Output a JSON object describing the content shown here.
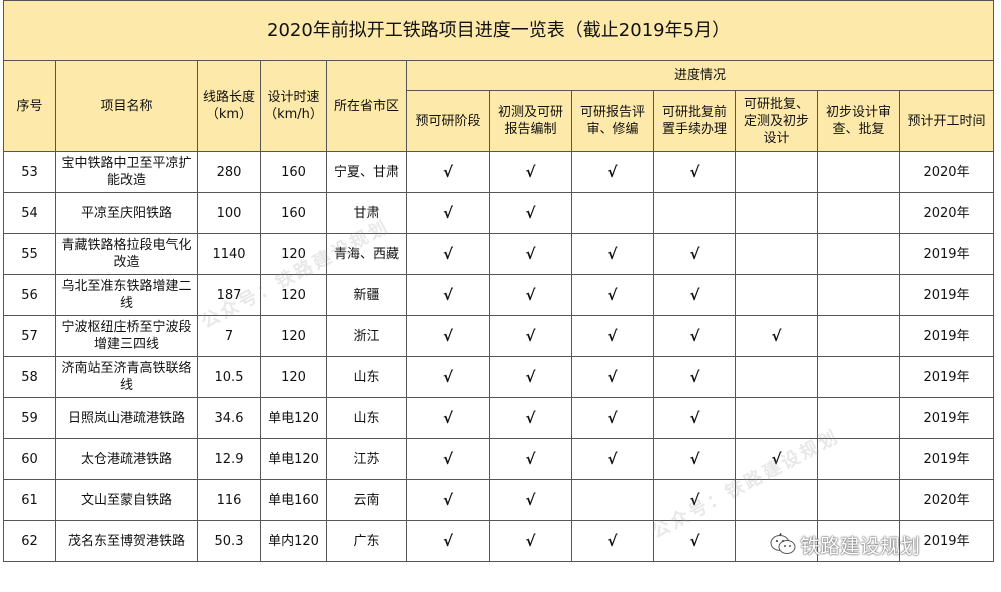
{
  "title": "2020年前拟开工铁路项目进度一览表（截止2019年5月）",
  "headers": {
    "index": "序号",
    "name": "项目名称",
    "length": "线路长度（km）",
    "speed": "设计时速（km/h）",
    "province": "所在省市区",
    "progress_group": "进度情况",
    "stages": [
      "预可研阶段",
      "初测及可研报告编制",
      "可研报告评审、修编",
      "可研批复前置手续办理",
      "可研批复、定测及初步设计",
      "初步设计审查、批复",
      "预计开工时间"
    ]
  },
  "rows": [
    {
      "no": "53",
      "name": "宝中铁路中卫至平凉扩能改造",
      "length": "280",
      "speed": "160",
      "province": "宁夏、甘肃",
      "stages": [
        "√",
        "√",
        "√",
        "√",
        "",
        ""
      ],
      "start": "2020年"
    },
    {
      "no": "54",
      "name": "平凉至庆阳铁路",
      "length": "100",
      "speed": "160",
      "province": "甘肃",
      "stages": [
        "√",
        "√",
        "",
        "",
        "",
        ""
      ],
      "start": "2020年"
    },
    {
      "no": "55",
      "name": "青藏铁路格拉段电气化改造",
      "length": "1140",
      "speed": "120",
      "province": "青海、西藏",
      "stages": [
        "√",
        "√",
        "√",
        "√",
        "",
        ""
      ],
      "start": "2019年"
    },
    {
      "no": "56",
      "name": "乌北至准东铁路增建二线",
      "length": "187",
      "speed": "120",
      "province": "新疆",
      "stages": [
        "√",
        "√",
        "√",
        "√",
        "",
        ""
      ],
      "start": "2019年"
    },
    {
      "no": "57",
      "name": "宁波枢纽庄桥至宁波段增建三四线",
      "length": "7",
      "speed": "120",
      "province": "浙江",
      "stages": [
        "√",
        "√",
        "√",
        "√",
        "√",
        ""
      ],
      "start": "2019年"
    },
    {
      "no": "58",
      "name": "济南站至济青高铁联络线",
      "length": "10.5",
      "speed": "120",
      "province": "山东",
      "stages": [
        "√",
        "√",
        "√",
        "√",
        "",
        ""
      ],
      "start": "2019年"
    },
    {
      "no": "59",
      "name": "日照岚山港疏港铁路",
      "length": "34.6",
      "speed": "单电120",
      "province": "山东",
      "stages": [
        "√",
        "√",
        "√",
        "√",
        "",
        ""
      ],
      "start": "2019年"
    },
    {
      "no": "60",
      "name": "太仓港疏港铁路",
      "length": "12.9",
      "speed": "单电120",
      "province": "江苏",
      "stages": [
        "√",
        "√",
        "√",
        "√",
        "√",
        ""
      ],
      "start": "2019年"
    },
    {
      "no": "61",
      "name": "文山至蒙自铁路",
      "length": "116",
      "speed": "单电160",
      "province": "云南",
      "stages": [
        "√",
        "√",
        "",
        "√",
        "",
        ""
      ],
      "start": "2020年"
    },
    {
      "no": "62",
      "name": "茂名东至博贺港铁路",
      "length": "50.3",
      "speed": "单内120",
      "province": "广东",
      "stages": [
        "√",
        "√",
        "√",
        "√",
        "√",
        ""
      ],
      "start": "2019年"
    }
  ],
  "watermarks": [
    "公众号：铁路建设规划",
    "公众号：铁路建设规划"
  ],
  "wechat_badge": "铁路建设规划"
}
